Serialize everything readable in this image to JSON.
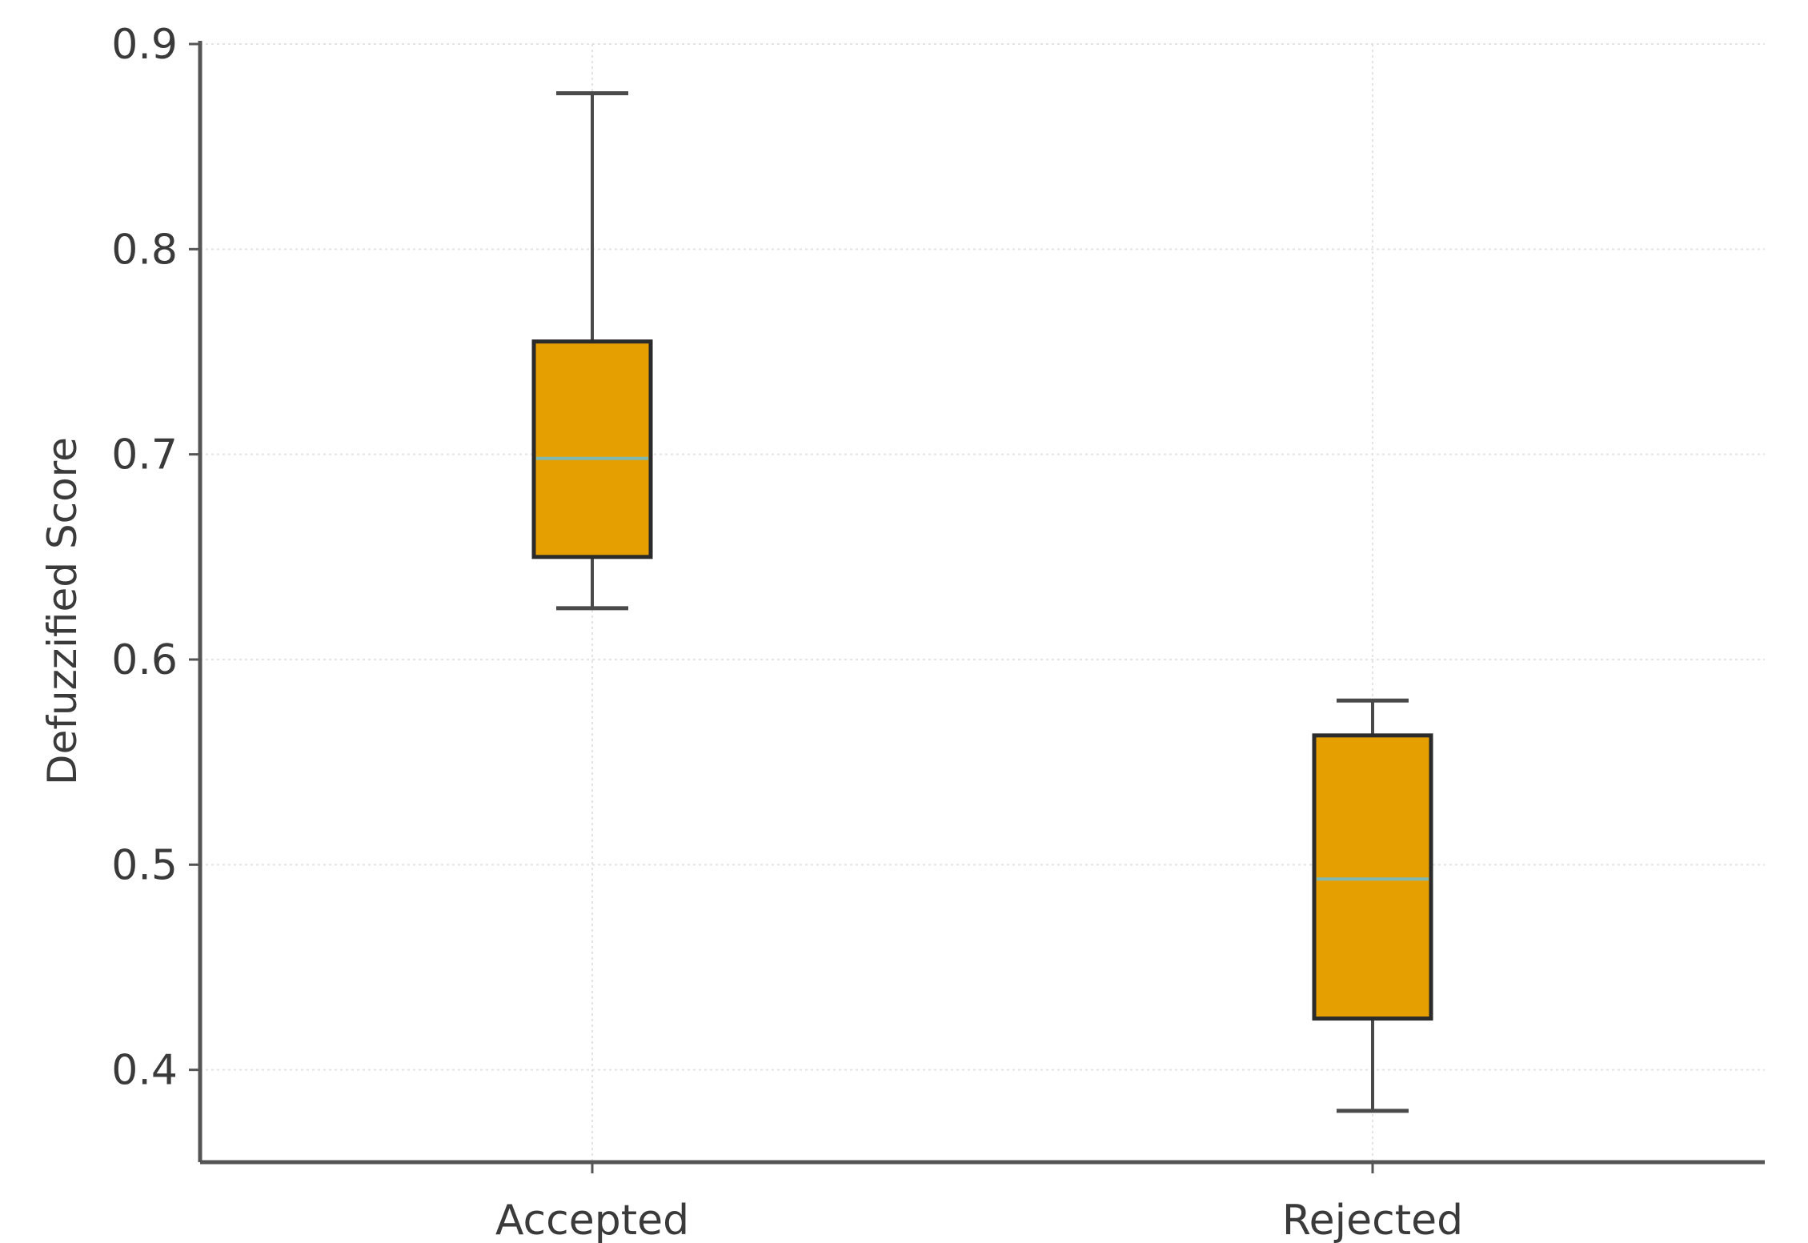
{
  "chart_data": {
    "type": "box",
    "title": "",
    "xlabel": "",
    "ylabel": "Defuzzified Score",
    "ylim": [
      0.355,
      0.9
    ],
    "yticks": [
      "0.9",
      "0.8",
      "0.7",
      "0.6",
      "0.5",
      "0.4"
    ],
    "grid": true,
    "categories": [
      "Accepted",
      "Rejected"
    ],
    "boxes": [
      {
        "category": "Accepted",
        "whisker_low": 0.625,
        "q1": 0.65,
        "median": 0.698,
        "q3": 0.755,
        "whisker_high": 0.876
      },
      {
        "category": "Rejected",
        "whisker_low": 0.38,
        "q1": 0.425,
        "median": 0.493,
        "q3": 0.563,
        "whisker_high": 0.58
      }
    ],
    "colors": {
      "box_fill": "#E69F00",
      "box_edge": "#2b2b2b",
      "median": "#7fb8b0",
      "whisker": "#4a4a4a",
      "axis": "#555555",
      "grid": "#e3e3e3"
    }
  }
}
